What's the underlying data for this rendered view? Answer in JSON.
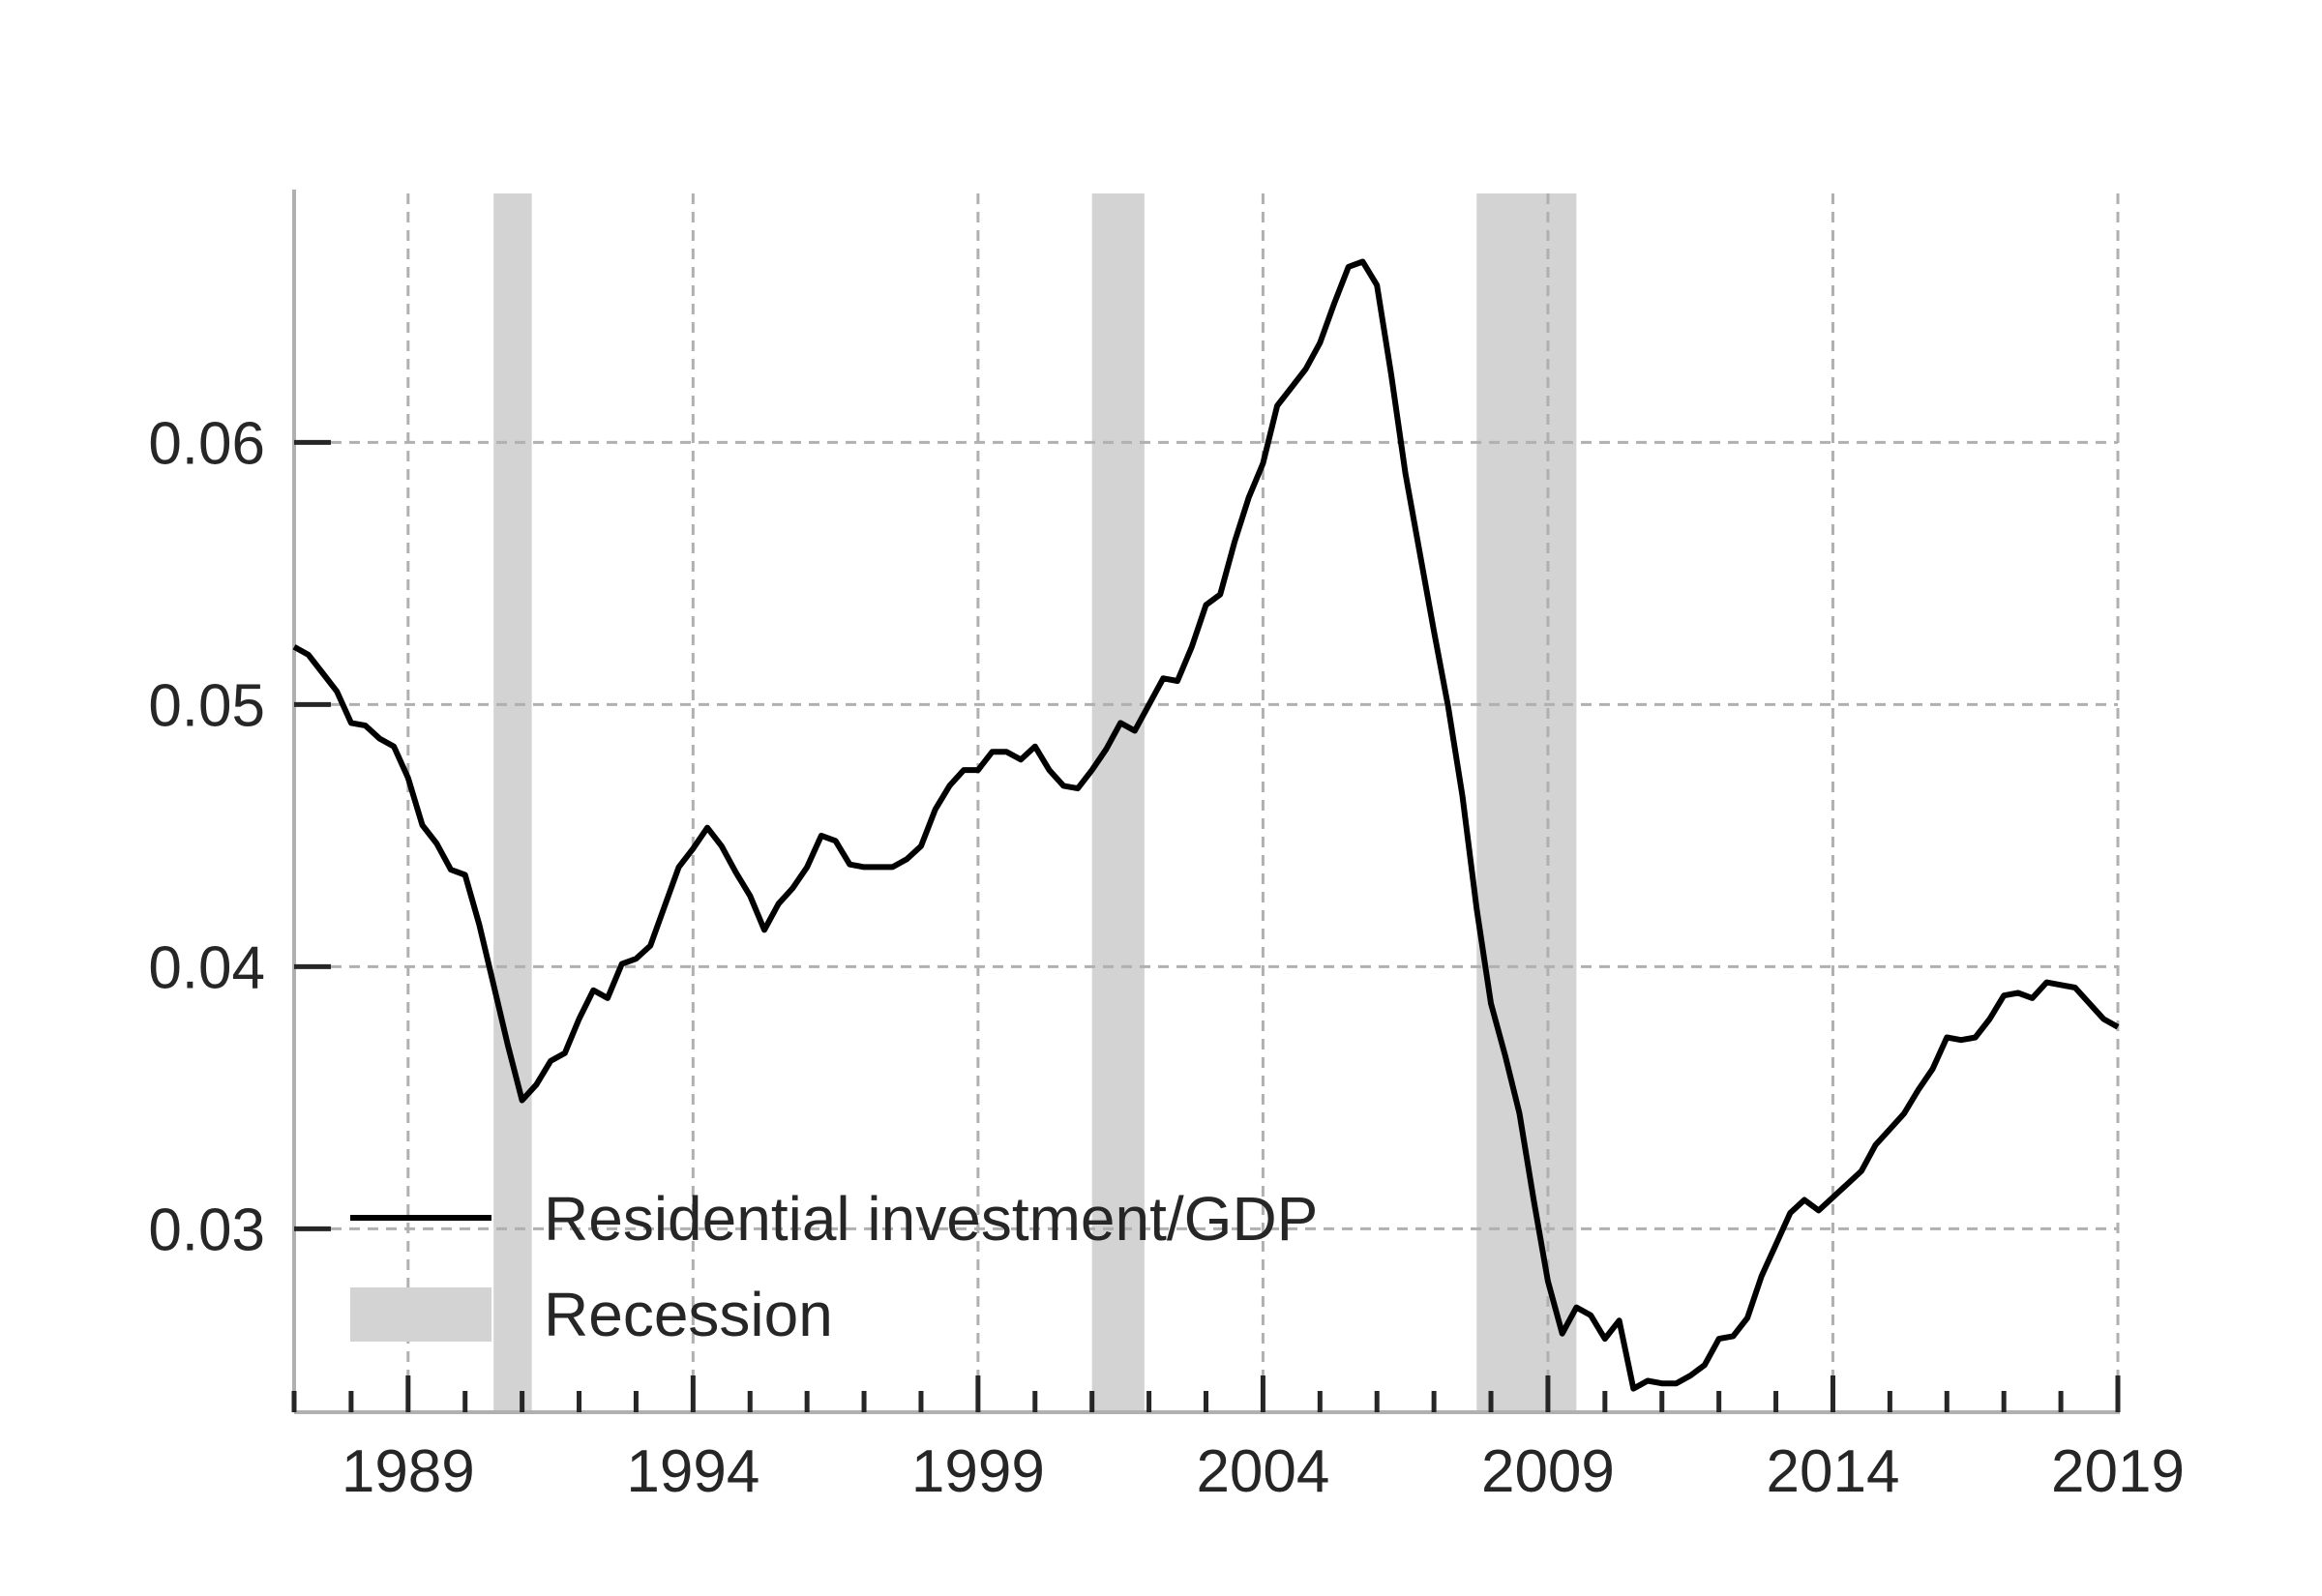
{
  "chart_data": {
    "type": "line",
    "title": "",
    "xlabel": "",
    "ylabel": "",
    "x_range": [
      1987.0,
      2019.0
    ],
    "y_range": [
      0.023,
      0.0695
    ],
    "y_ticks": [
      {
        "value": 0.03,
        "label": "0.03"
      },
      {
        "value": 0.04,
        "label": "0.04"
      },
      {
        "value": 0.05,
        "label": "0.05"
      },
      {
        "value": 0.06,
        "label": "0.06"
      }
    ],
    "x_ticks": [
      {
        "value": 1989,
        "label": "1989"
      },
      {
        "value": 1994,
        "label": "1994"
      },
      {
        "value": 1999,
        "label": "1999"
      },
      {
        "value": 2004,
        "label": "2004"
      },
      {
        "value": 2009,
        "label": "2009"
      },
      {
        "value": 2014,
        "label": "2014"
      },
      {
        "value": 2019,
        "label": "2019"
      }
    ],
    "minor_x_ticks_per_year": 1,
    "grid": true,
    "legend_position": "lower-left",
    "colors": {
      "line": "#000000",
      "recession": "#d3d3d3",
      "grid": "#b0b0b0",
      "axis": "#b0b0b0",
      "tick": "#262626"
    },
    "recessions": [
      {
        "start": 1990.5,
        "end": 1991.17
      },
      {
        "start": 2001.0,
        "end": 2001.92
      },
      {
        "start": 2007.75,
        "end": 2009.5
      }
    ],
    "series": [
      {
        "name": "Residential investment/GDP",
        "points": [
          [
            1987.0,
            0.0522
          ],
          [
            1987.25,
            0.0519
          ],
          [
            1987.5,
            0.0512
          ],
          [
            1987.75,
            0.0505
          ],
          [
            1988.0,
            0.0493
          ],
          [
            1988.25,
            0.0492
          ],
          [
            1988.5,
            0.0487
          ],
          [
            1988.75,
            0.0484
          ],
          [
            1989.0,
            0.0472
          ],
          [
            1989.25,
            0.0454
          ],
          [
            1989.5,
            0.0447
          ],
          [
            1989.75,
            0.0437
          ],
          [
            1990.0,
            0.0435
          ],
          [
            1990.25,
            0.0416
          ],
          [
            1990.5,
            0.0393
          ],
          [
            1990.75,
            0.037
          ],
          [
            1991.0,
            0.0349
          ],
          [
            1991.25,
            0.0355
          ],
          [
            1991.5,
            0.0364
          ],
          [
            1991.75,
            0.0367
          ],
          [
            1992.0,
            0.038
          ],
          [
            1992.25,
            0.0391
          ],
          [
            1992.5,
            0.0388
          ],
          [
            1992.75,
            0.0401
          ],
          [
            1993.0,
            0.0403
          ],
          [
            1993.25,
            0.0408
          ],
          [
            1993.5,
            0.0423
          ],
          [
            1993.75,
            0.0438
          ],
          [
            1994.0,
            0.0445
          ],
          [
            1994.25,
            0.0453
          ],
          [
            1994.5,
            0.0446
          ],
          [
            1994.75,
            0.0436
          ],
          [
            1995.0,
            0.0427
          ],
          [
            1995.25,
            0.0414
          ],
          [
            1995.5,
            0.0424
          ],
          [
            1995.75,
            0.043
          ],
          [
            1996.0,
            0.0438
          ],
          [
            1996.25,
            0.045
          ],
          [
            1996.5,
            0.0448
          ],
          [
            1996.75,
            0.0439
          ],
          [
            1997.0,
            0.0438
          ],
          [
            1997.25,
            0.0438
          ],
          [
            1997.5,
            0.0438
          ],
          [
            1997.75,
            0.0441
          ],
          [
            1998.0,
            0.0446
          ],
          [
            1998.25,
            0.046
          ],
          [
            1998.5,
            0.0469
          ],
          [
            1998.75,
            0.0475
          ],
          [
            1999.0,
            0.0475
          ],
          [
            1999.25,
            0.0482
          ],
          [
            1999.5,
            0.0482
          ],
          [
            1999.75,
            0.0479
          ],
          [
            2000.0,
            0.0484
          ],
          [
            2000.25,
            0.0475
          ],
          [
            2000.5,
            0.0469
          ],
          [
            2000.75,
            0.0468
          ],
          [
            2001.0,
            0.0475
          ],
          [
            2001.25,
            0.0483
          ],
          [
            2001.5,
            0.0493
          ],
          [
            2001.75,
            0.049
          ],
          [
            2002.0,
            0.05
          ],
          [
            2002.25,
            0.051
          ],
          [
            2002.5,
            0.0509
          ],
          [
            2002.75,
            0.0522
          ],
          [
            2003.0,
            0.0538
          ],
          [
            2003.25,
            0.0542
          ],
          [
            2003.5,
            0.0562
          ],
          [
            2003.75,
            0.0579
          ],
          [
            2004.0,
            0.0592
          ],
          [
            2004.25,
            0.0614
          ],
          [
            2004.5,
            0.0621
          ],
          [
            2004.75,
            0.0628
          ],
          [
            2005.0,
            0.0638
          ],
          [
            2005.25,
            0.0653
          ],
          [
            2005.5,
            0.0667
          ],
          [
            2005.75,
            0.0669
          ],
          [
            2006.0,
            0.066
          ],
          [
            2006.25,
            0.0626
          ],
          [
            2006.5,
            0.0588
          ],
          [
            2006.75,
            0.0558
          ],
          [
            2007.0,
            0.0528
          ],
          [
            2007.25,
            0.0499
          ],
          [
            2007.5,
            0.0465
          ],
          [
            2007.75,
            0.0422
          ],
          [
            2008.0,
            0.0386
          ],
          [
            2008.25,
            0.0366
          ],
          [
            2008.5,
            0.0344
          ],
          [
            2008.75,
            0.0311
          ],
          [
            2009.0,
            0.028
          ],
          [
            2009.25,
            0.026
          ],
          [
            2009.5,
            0.027
          ],
          [
            2009.75,
            0.0267
          ],
          [
            2010.0,
            0.0258
          ],
          [
            2010.25,
            0.0265
          ],
          [
            2010.5,
            0.0239
          ],
          [
            2010.75,
            0.0242
          ],
          [
            2011.0,
            0.0241
          ],
          [
            2011.25,
            0.0241
          ],
          [
            2011.5,
            0.0244
          ],
          [
            2011.75,
            0.0248
          ],
          [
            2012.0,
            0.0258
          ],
          [
            2012.25,
            0.0259
          ],
          [
            2012.5,
            0.0266
          ],
          [
            2012.75,
            0.0282
          ],
          [
            2013.0,
            0.0294
          ],
          [
            2013.25,
            0.0306
          ],
          [
            2013.5,
            0.0311
          ],
          [
            2013.75,
            0.0307
          ],
          [
            2014.0,
            0.0312
          ],
          [
            2014.25,
            0.0317
          ],
          [
            2014.5,
            0.0322
          ],
          [
            2014.75,
            0.0332
          ],
          [
            2015.0,
            0.0338
          ],
          [
            2015.25,
            0.0344
          ],
          [
            2015.5,
            0.0353
          ],
          [
            2015.75,
            0.0361
          ],
          [
            2016.0,
            0.0373
          ],
          [
            2016.25,
            0.0372
          ],
          [
            2016.5,
            0.0373
          ],
          [
            2016.75,
            0.038
          ],
          [
            2017.0,
            0.0389
          ],
          [
            2017.25,
            0.039
          ],
          [
            2017.5,
            0.0388
          ],
          [
            2017.75,
            0.0394
          ],
          [
            2018.0,
            0.0393
          ],
          [
            2018.25,
            0.0392
          ],
          [
            2018.5,
            0.0386
          ],
          [
            2018.75,
            0.038
          ],
          [
            2019.0,
            0.0377
          ]
        ]
      }
    ],
    "legend": [
      {
        "label": "Residential investment/GDP",
        "kind": "line"
      },
      {
        "label": "Recession",
        "kind": "patch"
      }
    ]
  }
}
